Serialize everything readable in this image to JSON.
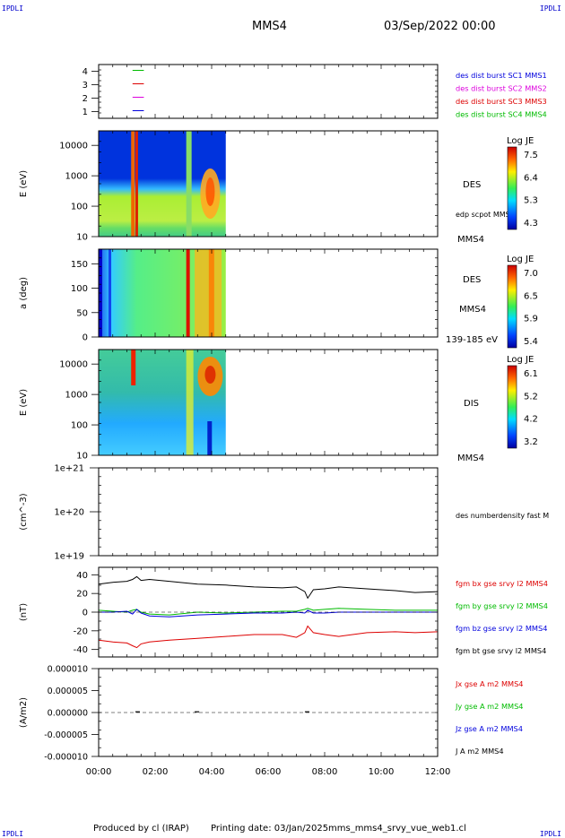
{
  "header": {
    "corner_tl": "IPDLI",
    "corner_tr": "IPDLI",
    "spacecraft": "MMS4",
    "datetime": "03/Sep/2022 00:00",
    "corner_bl": "IPDLI",
    "corner_br": "IPDLI"
  },
  "footer": {
    "produced_by": "Produced by cl (IRAP)",
    "printing_date": "Printing date: 03/Jan/2025",
    "filename": "mms_mms4_srvy_vue_web1.cl"
  },
  "colors": {
    "blue": "#0000dd",
    "magenta": "#dd00dd",
    "red": "#dd0000",
    "green": "#00bb00",
    "black": "#000000"
  },
  "chart_data": [
    {
      "type": "bar",
      "panel": "burst-availability",
      "ylim": [
        0.5,
        4.5
      ],
      "yticks": [
        "1",
        "2",
        "3",
        "4"
      ],
      "series": [
        {
          "name": "des dist burst SC1 MMS1",
          "color": "#0000dd",
          "y": 1
        },
        {
          "name": "des dist burst SC2 MMS2",
          "color": "#dd00dd",
          "y": 2
        },
        {
          "name": "des dist burst SC3 MMS3",
          "color": "#dd0000",
          "y": 3
        },
        {
          "name": "des dist burst SC4 MMS4",
          "color": "#00bb00",
          "y": 4
        }
      ]
    },
    {
      "type": "heatmap",
      "panel": "des-energy",
      "ylabel": "E (eV)",
      "yscale": "log",
      "ylim": [
        10,
        30000
      ],
      "yticks": [
        "10",
        "100",
        "1000",
        "10000"
      ],
      "data_end_hour": 4.5,
      "instrument": "DES",
      "extra_label": "edp scpot MMS4",
      "spacecraft": "MMS4",
      "colorbar": {
        "title": "Log JE",
        "ticks": [
          "7.5",
          "6.4",
          "5.3",
          "4.3"
        ]
      }
    },
    {
      "type": "heatmap",
      "panel": "des-pitch",
      "ylabel": "a (deg)",
      "ylim": [
        0,
        180
      ],
      "yticks": [
        "0",
        "50",
        "100",
        "150"
      ],
      "data_end_hour": 4.5,
      "instrument": "DES",
      "spacecraft": "MMS4",
      "energy_range": "139-185 eV",
      "colorbar": {
        "title": "Log JE",
        "ticks": [
          "7.0",
          "6.5",
          "5.9",
          "5.4"
        ]
      }
    },
    {
      "type": "heatmap",
      "panel": "dis-energy",
      "ylabel": "E (eV)",
      "yscale": "log",
      "ylim": [
        10,
        30000
      ],
      "yticks": [
        "10",
        "100",
        "1000",
        "10000"
      ],
      "data_end_hour": 4.5,
      "instrument": "DIS",
      "spacecraft": "MMS4",
      "colorbar": {
        "title": "Log JE",
        "ticks": [
          "6.1",
          "5.2",
          "4.2",
          "3.2"
        ]
      }
    },
    {
      "type": "line",
      "panel": "density",
      "ylabel": "(cm^-3)",
      "yscale": "log",
      "yticks": [
        "1e+19",
        "1e+20",
        "1e+21"
      ],
      "series": [
        {
          "name": "des numberdensity fast M",
          "color": "#000000",
          "values": []
        }
      ]
    },
    {
      "type": "line",
      "panel": "fgm",
      "ylabel": "(nT)",
      "ylim": [
        -48,
        48
      ],
      "yticks": [
        "-40",
        "-20",
        "0",
        "20",
        "40"
      ],
      "x": [
        0,
        0.5,
        1.0,
        1.2,
        1.35,
        1.5,
        1.8,
        2.5,
        3.5,
        4.5,
        5.5,
        6.5,
        7.0,
        7.3,
        7.4,
        7.6,
        8.0,
        8.5,
        9.5,
        10.5,
        11.2,
        12.0
      ],
      "series": [
        {
          "name": "fgm bx gse srvy l2 MMS4",
          "color": "#dd0000",
          "values": [
            -30,
            -32,
            -33,
            -36,
            -38,
            -34,
            -32,
            -30,
            -28,
            -26,
            -24,
            -24,
            -27,
            -22,
            -15,
            -22,
            -24,
            -26,
            -22,
            -21,
            -22,
            -21
          ]
        },
        {
          "name": "fgm by gse srvy l2 MMS4",
          "color": "#00bb00",
          "values": [
            2,
            1,
            0,
            2,
            3,
            0,
            -2,
            -3,
            0,
            -1,
            0,
            1,
            1,
            3,
            4,
            2,
            3,
            4,
            3,
            2,
            2,
            2
          ]
        },
        {
          "name": "fgm bz gse srvy l2 MMS4",
          "color": "#0000dd",
          "values": [
            0,
            0,
            1,
            -2,
            3,
            -1,
            -4,
            -5,
            -3,
            -2,
            -1,
            -1,
            0,
            -1,
            2,
            -1,
            -1,
            0,
            0,
            0,
            0,
            0
          ]
        },
        {
          "name": "fgm bt gse srvy l2 MMS4",
          "color": "#000000",
          "values": [
            30,
            32,
            33,
            35,
            38,
            34,
            35,
            33,
            30,
            29,
            27,
            26,
            27,
            22,
            15,
            24,
            25,
            27,
            25,
            23,
            21,
            22
          ]
        }
      ]
    },
    {
      "type": "line",
      "panel": "current",
      "ylabel": "(A/m2)",
      "ylim": [
        -1e-05,
        1e-05
      ],
      "yticks": [
        "-0.000010",
        "-0.000005",
        "0.000000",
        "0.000005",
        "0.000010"
      ],
      "series": [
        {
          "name": "Jx gse A m2 MMS4",
          "color": "#dd0000"
        },
        {
          "name": "Jy gse A m2 MMS4",
          "color": "#00bb00"
        },
        {
          "name": "Jz gse A m2 MMS4",
          "color": "#0000dd"
        },
        {
          "name": "J A m2 MMS4",
          "color": "#000000"
        }
      ]
    }
  ],
  "xaxis": {
    "ticks": [
      "00:00",
      "02:00",
      "04:00",
      "06:00",
      "08:00",
      "10:00",
      "12:00"
    ],
    "xlim_hours": [
      0,
      12
    ]
  }
}
